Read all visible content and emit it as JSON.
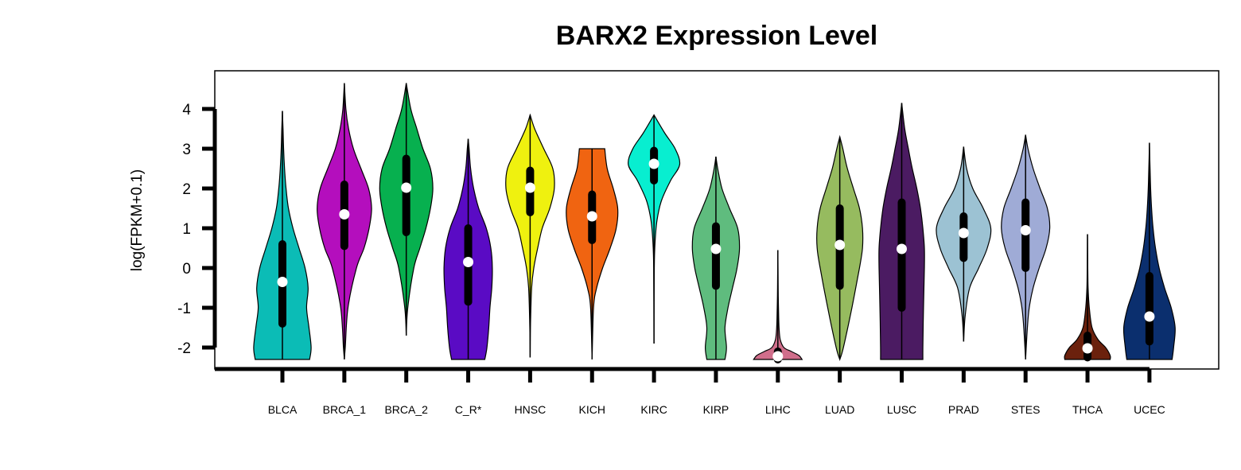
{
  "chart_data": {
    "type": "violin",
    "title": "BARX2 Expression Level",
    "xlabel": "",
    "ylabel": "log(FPKM+0.1)",
    "ylim": [
      -2.6,
      4.9
    ],
    "yticks": [
      -2,
      -1,
      0,
      1,
      2,
      3,
      4
    ],
    "grid": false,
    "legend": "none",
    "categories": [
      "BLCA",
      "BRCA_1",
      "BRCA_2",
      "C_R*",
      "HNSC",
      "KICH",
      "KIRC",
      "KIRP",
      "LIHC",
      "LUAD",
      "LUSC",
      "PRAD",
      "STES",
      "THCA",
      "UCEC"
    ],
    "series": [
      {
        "category": "BLCA",
        "color": "#0bbcb6",
        "min": -2.3,
        "max": 3.95,
        "q1": -1.4,
        "median": -0.35,
        "q3": 0.6,
        "density": [
          [
            -2.3,
            0.9
          ],
          [
            -2.0,
            0.95
          ],
          [
            -1.5,
            0.88
          ],
          [
            -1.0,
            0.8
          ],
          [
            -0.5,
            0.85
          ],
          [
            0.0,
            0.75
          ],
          [
            0.5,
            0.55
          ],
          [
            1.0,
            0.35
          ],
          [
            1.5,
            0.2
          ],
          [
            2.0,
            0.12
          ],
          [
            2.5,
            0.07
          ],
          [
            3.0,
            0.04
          ],
          [
            3.5,
            0.02
          ],
          [
            3.95,
            0.0
          ]
        ]
      },
      {
        "category": "BRCA_1",
        "color": "#b40ebd",
        "min": -2.3,
        "max": 4.65,
        "q1": 0.55,
        "median": 1.35,
        "q3": 2.1,
        "density": [
          [
            -2.3,
            0.0
          ],
          [
            -2.0,
            0.03
          ],
          [
            -1.0,
            0.12
          ],
          [
            0.0,
            0.4
          ],
          [
            0.5,
            0.65
          ],
          [
            1.0,
            0.82
          ],
          [
            1.5,
            0.9
          ],
          [
            2.0,
            0.8
          ],
          [
            2.5,
            0.55
          ],
          [
            3.0,
            0.3
          ],
          [
            3.5,
            0.14
          ],
          [
            4.0,
            0.05
          ],
          [
            4.65,
            0.0
          ]
        ]
      },
      {
        "category": "BRCA_2",
        "color": "#07b04f",
        "min": -1.7,
        "max": 4.65,
        "q1": 0.9,
        "median": 2.02,
        "q3": 2.75,
        "density": [
          [
            -1.7,
            0.0
          ],
          [
            -1.0,
            0.05
          ],
          [
            0.0,
            0.25
          ],
          [
            0.5,
            0.45
          ],
          [
            1.0,
            0.65
          ],
          [
            1.5,
            0.8
          ],
          [
            2.0,
            0.88
          ],
          [
            2.5,
            0.8
          ],
          [
            3.0,
            0.55
          ],
          [
            3.5,
            0.35
          ],
          [
            4.0,
            0.15
          ],
          [
            4.65,
            0.0
          ]
        ]
      },
      {
        "category": "C_R*",
        "color": "#5a0bc4",
        "min": -2.3,
        "max": 3.25,
        "q1": -0.85,
        "median": 0.15,
        "q3": 1.0,
        "density": [
          [
            -2.3,
            0.55
          ],
          [
            -2.0,
            0.62
          ],
          [
            -1.5,
            0.68
          ],
          [
            -1.0,
            0.72
          ],
          [
            -0.5,
            0.78
          ],
          [
            0.0,
            0.8
          ],
          [
            0.5,
            0.75
          ],
          [
            1.0,
            0.6
          ],
          [
            1.5,
            0.35
          ],
          [
            2.0,
            0.18
          ],
          [
            2.5,
            0.08
          ],
          [
            3.0,
            0.03
          ],
          [
            3.25,
            0.0
          ]
        ]
      },
      {
        "category": "HNSC",
        "color": "#eff10f",
        "min": -2.25,
        "max": 3.85,
        "q1": 1.4,
        "median": 2.02,
        "q3": 2.45,
        "density": [
          [
            -2.25,
            0.0
          ],
          [
            -1.5,
            0.01
          ],
          [
            -0.5,
            0.05
          ],
          [
            0.0,
            0.12
          ],
          [
            0.5,
            0.25
          ],
          [
            1.0,
            0.4
          ],
          [
            1.5,
            0.65
          ],
          [
            2.0,
            0.8
          ],
          [
            2.5,
            0.75
          ],
          [
            3.0,
            0.45
          ],
          [
            3.5,
            0.15
          ],
          [
            3.85,
            0.0
          ]
        ]
      },
      {
        "category": "KICH",
        "color": "#f06411",
        "min": -2.3,
        "max": 3.0,
        "q1": 0.7,
        "median": 1.3,
        "q3": 1.85,
        "density": [
          [
            -2.3,
            0.0
          ],
          [
            -1.0,
            0.05
          ],
          [
            -0.5,
            0.15
          ],
          [
            0.0,
            0.35
          ],
          [
            0.5,
            0.6
          ],
          [
            1.0,
            0.8
          ],
          [
            1.5,
            0.85
          ],
          [
            2.0,
            0.7
          ],
          [
            2.5,
            0.5
          ],
          [
            3.0,
            0.42
          ]
        ]
      },
      {
        "category": "KIRC",
        "color": "#08eed0",
        "min": -1.9,
        "max": 3.85,
        "q1": 2.2,
        "median": 2.62,
        "q3": 2.95,
        "density": [
          [
            -1.9,
            0.0
          ],
          [
            0.0,
            0.01
          ],
          [
            0.7,
            0.04
          ],
          [
            1.2,
            0.1
          ],
          [
            1.7,
            0.25
          ],
          [
            2.2,
            0.55
          ],
          [
            2.6,
            0.85
          ],
          [
            3.0,
            0.7
          ],
          [
            3.4,
            0.35
          ],
          [
            3.85,
            0.0
          ]
        ]
      },
      {
        "category": "KIRP",
        "color": "#5fbc7e",
        "min": -2.3,
        "max": 2.8,
        "q1": -0.45,
        "median": 0.48,
        "q3": 1.05,
        "density": [
          [
            -2.3,
            0.3
          ],
          [
            -2.0,
            0.35
          ],
          [
            -1.5,
            0.3
          ],
          [
            -1.0,
            0.4
          ],
          [
            -0.5,
            0.55
          ],
          [
            0.0,
            0.7
          ],
          [
            0.5,
            0.78
          ],
          [
            1.0,
            0.72
          ],
          [
            1.5,
            0.45
          ],
          [
            2.0,
            0.2
          ],
          [
            2.5,
            0.06
          ],
          [
            2.8,
            0.0
          ]
        ]
      },
      {
        "category": "LIHC",
        "color": "#d06e8b",
        "min": -2.3,
        "max": 0.45,
        "q1": -2.3,
        "median": -2.22,
        "q3": -2.1,
        "density": [
          [
            -2.3,
            0.8
          ],
          [
            -2.2,
            0.7
          ],
          [
            -2.1,
            0.45
          ],
          [
            -2.0,
            0.2
          ],
          [
            -1.8,
            0.08
          ],
          [
            -1.5,
            0.04
          ],
          [
            -1.0,
            0.02
          ],
          [
            -0.5,
            0.01
          ],
          [
            0.45,
            0.0
          ]
        ]
      },
      {
        "category": "LUAD",
        "color": "#96bb5f",
        "min": -2.3,
        "max": 3.3,
        "q1": -0.45,
        "median": 0.58,
        "q3": 1.5,
        "density": [
          [
            -2.3,
            0.0
          ],
          [
            -2.0,
            0.12
          ],
          [
            -1.0,
            0.4
          ],
          [
            0.0,
            0.65
          ],
          [
            0.5,
            0.75
          ],
          [
            1.0,
            0.75
          ],
          [
            1.5,
            0.65
          ],
          [
            2.0,
            0.45
          ],
          [
            2.5,
            0.25
          ],
          [
            3.0,
            0.1
          ],
          [
            3.3,
            0.0
          ]
        ]
      },
      {
        "category": "LUSC",
        "color": "#4b1b62",
        "min": -2.3,
        "max": 4.15,
        "q1": -1.0,
        "median": 0.48,
        "q3": 1.65,
        "density": [
          [
            -2.3,
            0.7
          ],
          [
            -2.0,
            0.7
          ],
          [
            -1.0,
            0.72
          ],
          [
            0.0,
            0.75
          ],
          [
            0.5,
            0.75
          ],
          [
            1.0,
            0.7
          ],
          [
            1.5,
            0.62
          ],
          [
            2.0,
            0.5
          ],
          [
            2.5,
            0.35
          ],
          [
            3.0,
            0.22
          ],
          [
            3.5,
            0.1
          ],
          [
            4.15,
            0.0
          ]
        ]
      },
      {
        "category": "PRAD",
        "color": "#9cc2d3",
        "min": -1.85,
        "max": 3.05,
        "q1": 0.25,
        "median": 0.88,
        "q3": 1.3,
        "density": [
          [
            -1.85,
            0.0
          ],
          [
            -1.2,
            0.05
          ],
          [
            -0.5,
            0.2
          ],
          [
            0.0,
            0.5
          ],
          [
            0.5,
            0.78
          ],
          [
            1.0,
            0.9
          ],
          [
            1.5,
            0.65
          ],
          [
            2.0,
            0.3
          ],
          [
            2.5,
            0.1
          ],
          [
            3.05,
            0.0
          ]
        ]
      },
      {
        "category": "STES",
        "color": "#9fabd6",
        "min": -2.3,
        "max": 3.35,
        "q1": 0.0,
        "median": 0.95,
        "q3": 1.65,
        "density": [
          [
            -2.3,
            0.0
          ],
          [
            -1.5,
            0.06
          ],
          [
            -1.0,
            0.12
          ],
          [
            -0.5,
            0.25
          ],
          [
            0.0,
            0.45
          ],
          [
            0.5,
            0.68
          ],
          [
            1.0,
            0.8
          ],
          [
            1.5,
            0.72
          ],
          [
            2.0,
            0.48
          ],
          [
            2.5,
            0.25
          ],
          [
            3.0,
            0.08
          ],
          [
            3.35,
            0.0
          ]
        ]
      },
      {
        "category": "THCA",
        "color": "#6b210d",
        "min": -2.3,
        "max": 0.85,
        "q1": -2.25,
        "median": -2.02,
        "q3": -1.7,
        "density": [
          [
            -2.3,
            0.75
          ],
          [
            -2.2,
            0.75
          ],
          [
            -2.0,
            0.6
          ],
          [
            -1.8,
            0.35
          ],
          [
            -1.5,
            0.15
          ],
          [
            -1.0,
            0.06
          ],
          [
            -0.5,
            0.02
          ],
          [
            0.0,
            0.01
          ],
          [
            0.85,
            0.0
          ]
        ]
      },
      {
        "category": "UCEC",
        "color": "#0b2f6e",
        "min": -2.3,
        "max": 3.15,
        "q1": -1.85,
        "median": -1.22,
        "q3": -0.2,
        "density": [
          [
            -2.3,
            0.75
          ],
          [
            -2.0,
            0.8
          ],
          [
            -1.5,
            0.85
          ],
          [
            -1.0,
            0.72
          ],
          [
            -0.5,
            0.5
          ],
          [
            0.0,
            0.32
          ],
          [
            0.5,
            0.2
          ],
          [
            1.0,
            0.12
          ],
          [
            1.5,
            0.07
          ],
          [
            2.0,
            0.04
          ],
          [
            2.5,
            0.02
          ],
          [
            3.15,
            0.0
          ]
        ]
      }
    ]
  }
}
